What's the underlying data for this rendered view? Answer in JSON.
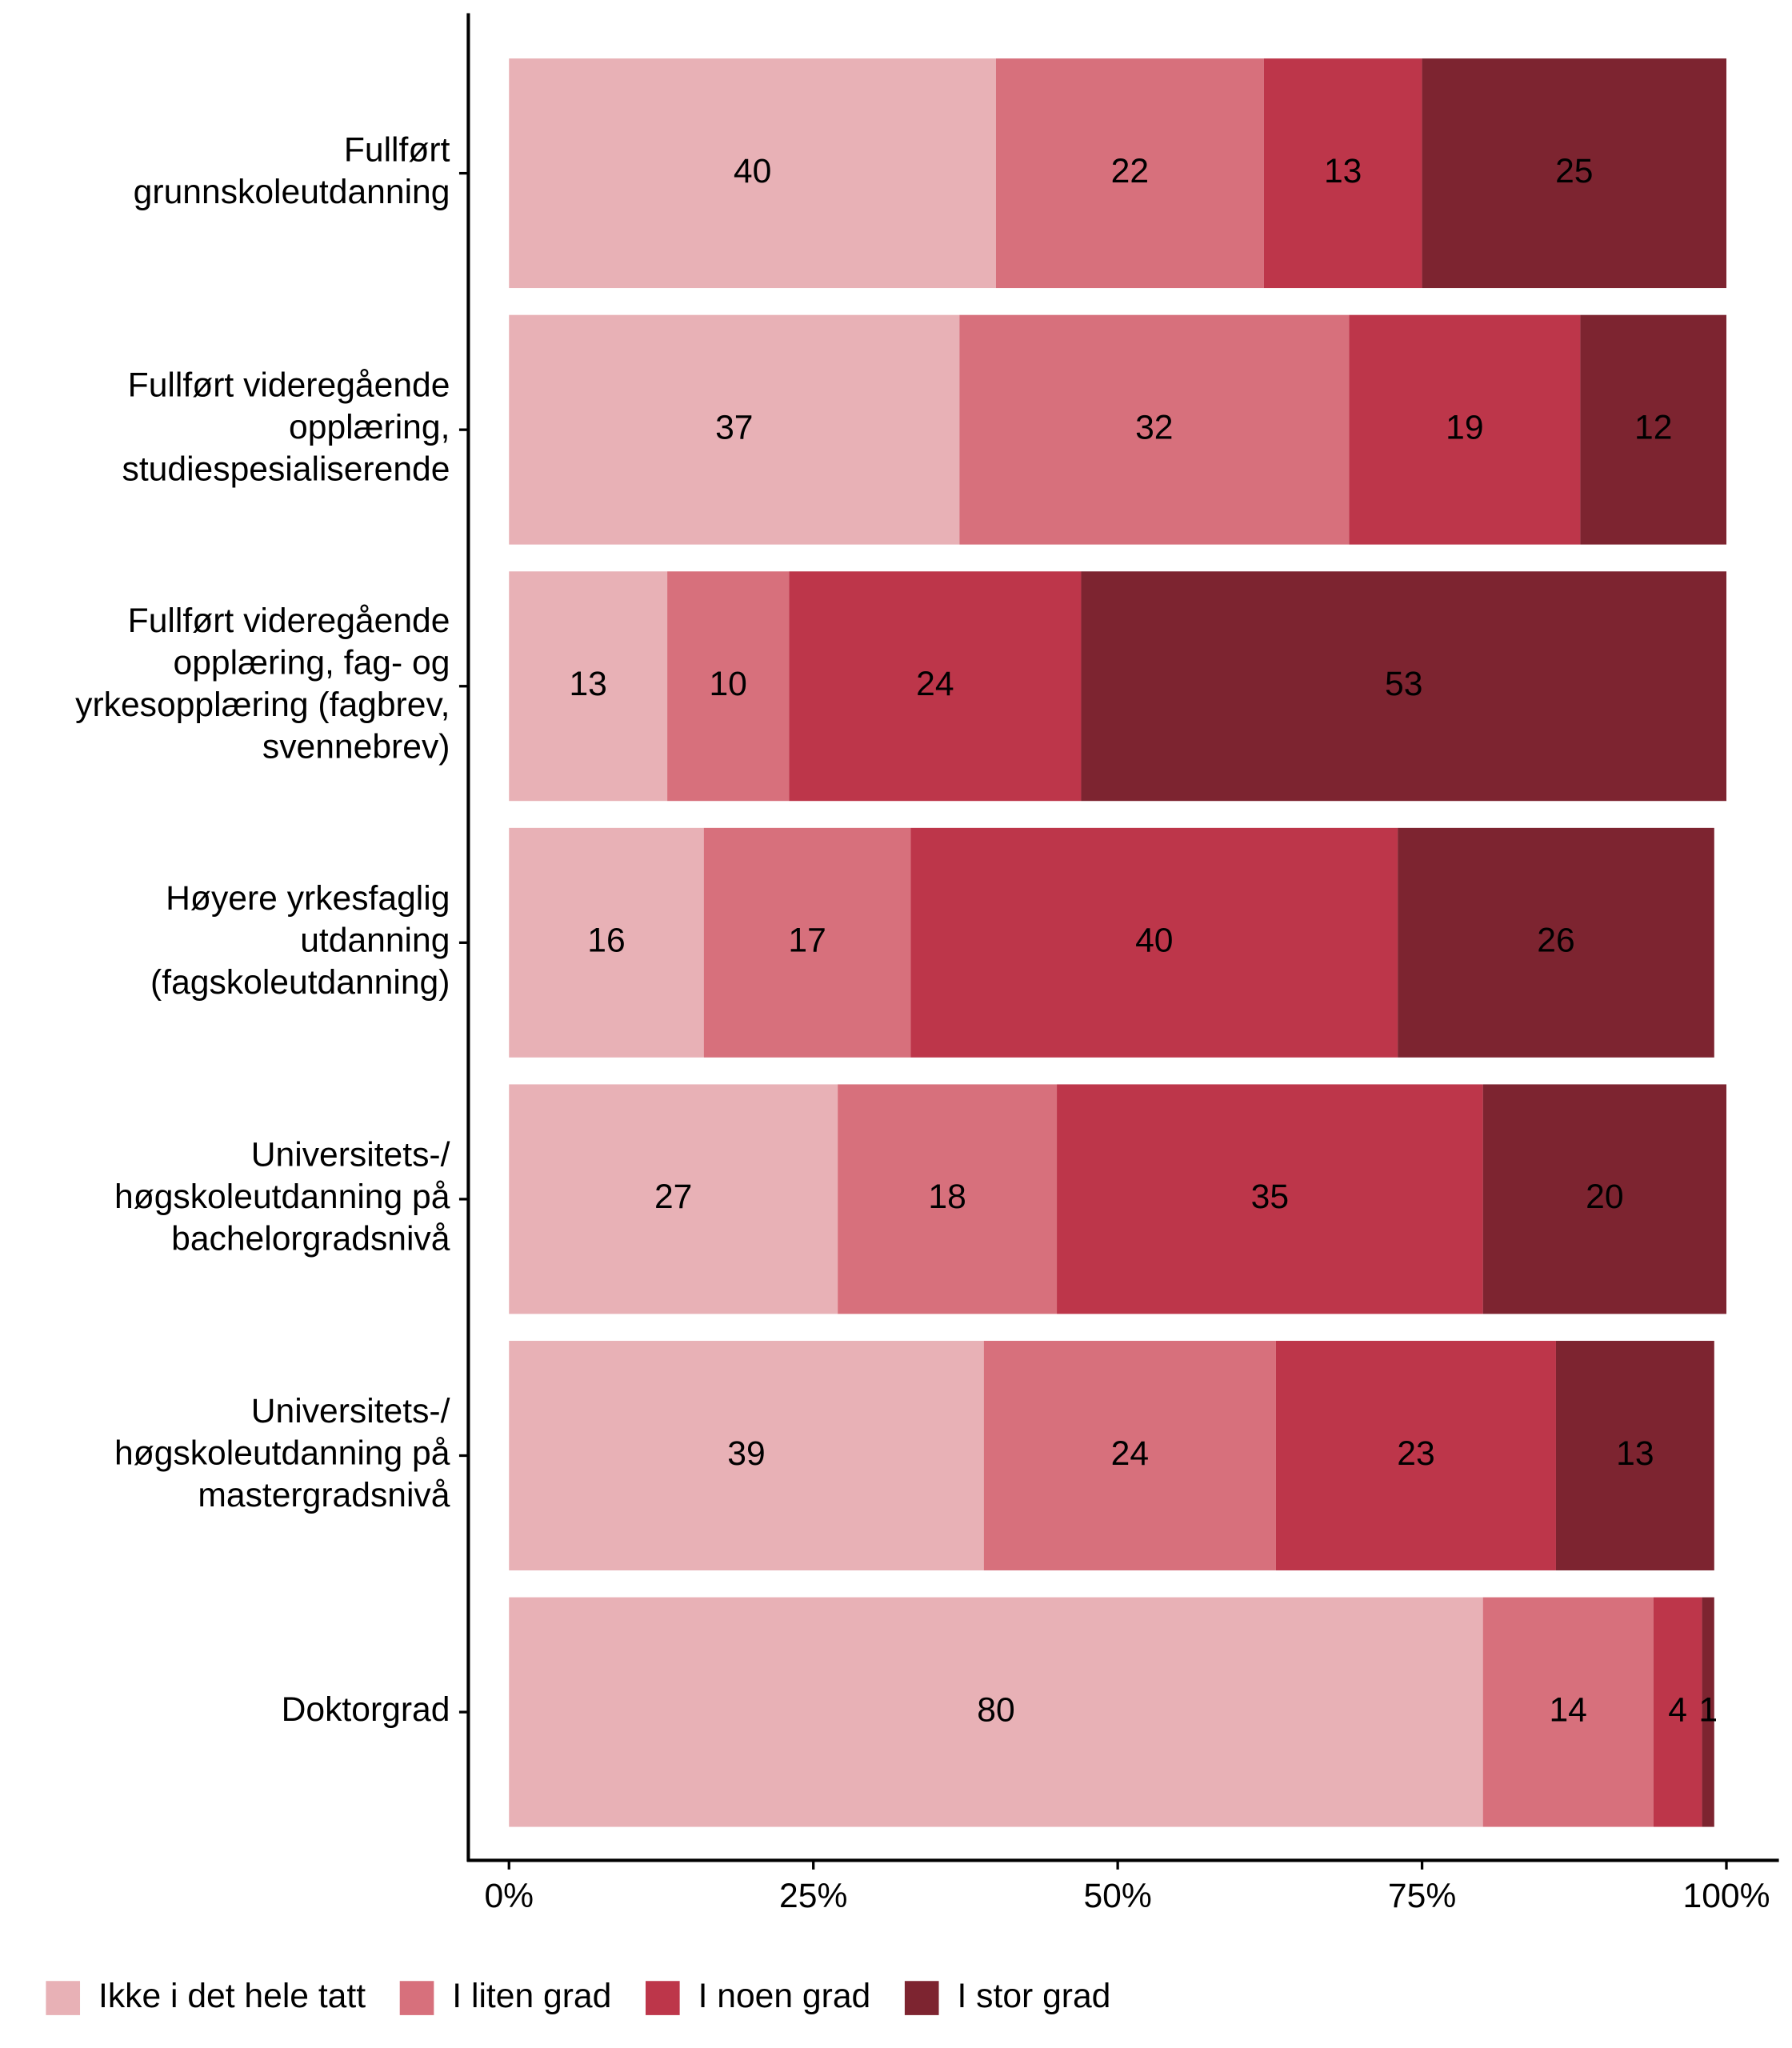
{
  "chart_data": {
    "type": "stacked_barh",
    "categories": [
      [
        "Fullført",
        "grunnskoleutdanning"
      ],
      [
        "Fullført videregående",
        "opplæring,",
        "studiespesialiserende"
      ],
      [
        "Fullført videregående",
        "opplæring, fag- og",
        "yrkesopplæring (fagbrev,",
        "svennebrev)"
      ],
      [
        "Høyere yrkesfaglig",
        "utdanning",
        "(fagskoleutdanning)"
      ],
      [
        "Universitets-/",
        "høgskoleutdanning på",
        "bachelorgradsnivå"
      ],
      [
        "Universitets-/",
        "høgskoleutdanning på",
        "mastergradsnivå"
      ],
      [
        "Doktorgrad"
      ]
    ],
    "series": [
      {
        "name": "Ikke i det hele tatt",
        "color": "#e8b1b6",
        "label_color": "#000000",
        "values": [
          40,
          37,
          13,
          16,
          27,
          39,
          80
        ]
      },
      {
        "name": "I liten grad",
        "color": "#d7707c",
        "label_color": "#000000",
        "values": [
          22,
          32,
          10,
          17,
          18,
          24,
          14
        ]
      },
      {
        "name": "I noen grad",
        "color": "#bd364a",
        "label_color": "#ffffff",
        "values": [
          13,
          19,
          24,
          40,
          35,
          23,
          4
        ]
      },
      {
        "name": "I stor grad",
        "color": "#7d2430",
        "label_color": "#ffffff",
        "values": [
          25,
          12,
          53,
          26,
          20,
          13,
          1
        ]
      }
    ],
    "xlim": [
      0,
      100
    ],
    "xticks": [
      {
        "value": 0,
        "label": "0%"
      },
      {
        "value": 25,
        "label": "25%"
      },
      {
        "value": 50,
        "label": "50%"
      },
      {
        "value": 75,
        "label": "75%"
      },
      {
        "value": 100,
        "label": "100%"
      }
    ],
    "legend": "bottom"
  }
}
